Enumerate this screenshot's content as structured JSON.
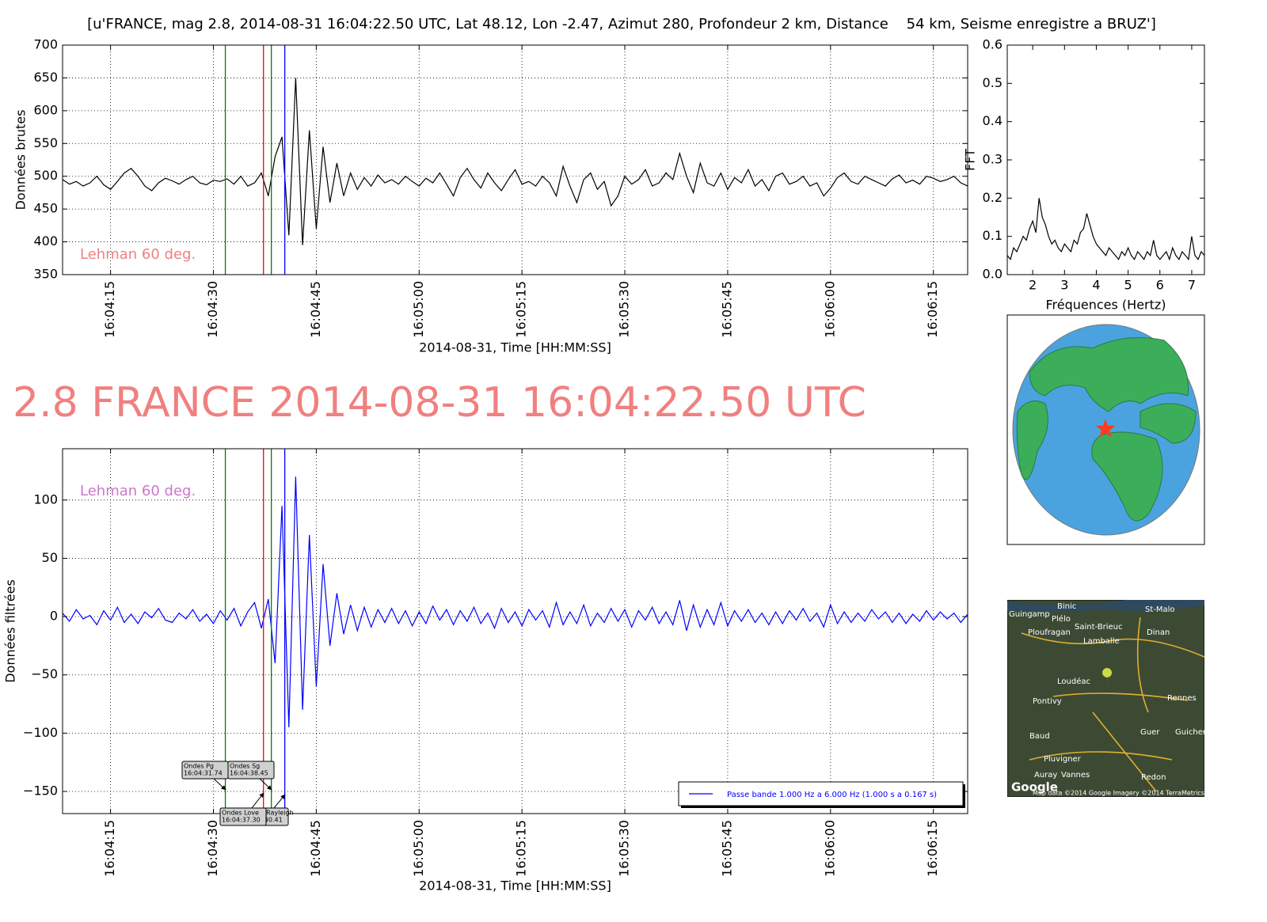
{
  "chart_data": [
    {
      "type": "line",
      "title": "[u'FRANCE, mag 2.8, 2014-08-31 16:04:22.50 UTC, Lat 48.12, Lon -2.47, Azimut 280, Profondeur 2 km, Distance    54 km, Seisme enregistre a BRUZ']",
      "ylabel": "Données brutes",
      "xlabel": "2014-08-31, Time [HH:MM:SS]",
      "annotation": "Lehman 60 deg.",
      "annotation_color": "#f08080",
      "x": [
        "16:04:08",
        "16:04:09",
        "16:04:10",
        "16:04:11",
        "16:04:12",
        "16:04:13",
        "16:04:14",
        "16:04:15",
        "16:04:16",
        "16:04:17",
        "16:04:18",
        "16:04:19",
        "16:04:20",
        "16:04:21",
        "16:04:22",
        "16:04:23",
        "16:04:24",
        "16:04:25",
        "16:04:26",
        "16:04:27",
        "16:04:28",
        "16:04:29",
        "16:04:30",
        "16:04:31",
        "16:04:32",
        "16:04:33",
        "16:04:34",
        "16:04:35",
        "16:04:36",
        "16:04:37",
        "16:04:38",
        "16:04:39",
        "16:04:40",
        "16:04:41",
        "16:04:42",
        "16:04:43",
        "16:04:44",
        "16:04:45",
        "16:04:46",
        "16:04:47",
        "16:04:48",
        "16:04:49",
        "16:04:50",
        "16:04:51",
        "16:04:52",
        "16:04:53",
        "16:04:54",
        "16:04:55",
        "16:04:56",
        "16:04:57",
        "16:04:58",
        "16:04:59",
        "16:05:00",
        "16:05:01",
        "16:05:02",
        "16:05:03",
        "16:05:04",
        "16:05:05",
        "16:05:06",
        "16:05:07",
        "16:05:08",
        "16:05:09",
        "16:05:10",
        "16:05:11",
        "16:05:12",
        "16:05:13",
        "16:05:14",
        "16:05:15",
        "16:05:16",
        "16:05:17",
        "16:05:18",
        "16:05:19",
        "16:05:20",
        "16:05:21",
        "16:05:22",
        "16:05:23",
        "16:05:24",
        "16:05:25",
        "16:05:26",
        "16:05:27",
        "16:05:28",
        "16:05:29",
        "16:05:30",
        "16:05:31",
        "16:05:32",
        "16:05:33",
        "16:05:34",
        "16:05:35",
        "16:05:36",
        "16:05:37",
        "16:05:38",
        "16:05:39",
        "16:05:40",
        "16:05:41",
        "16:05:42",
        "16:05:43",
        "16:05:44",
        "16:05:45",
        "16:05:46",
        "16:05:47",
        "16:05:48",
        "16:05:49",
        "16:05:50",
        "16:05:51",
        "16:05:52",
        "16:05:53",
        "16:05:54",
        "16:05:55",
        "16:05:56",
        "16:05:57",
        "16:05:58",
        "16:05:59",
        "16:06:00",
        "16:06:01",
        "16:06:02",
        "16:06:03",
        "16:06:04",
        "16:06:05",
        "16:06:06",
        "16:06:07",
        "16:06:08",
        "16:06:09",
        "16:06:10",
        "16:06:11",
        "16:06:12",
        "16:06:13",
        "16:06:14",
        "16:06:15",
        "16:06:16",
        "16:06:17",
        "16:06:18",
        "16:06:19",
        "16:06:20"
      ],
      "series": [
        {
          "color": "#000000",
          "values": [
            495,
            488,
            492,
            485,
            490,
            500,
            487,
            480,
            492,
            505,
            512,
            500,
            485,
            478,
            490,
            497,
            493,
            488,
            495,
            500,
            490,
            487,
            494,
            492,
            496,
            488,
            500,
            485,
            490,
            505,
            470,
            530,
            560,
            410,
            650,
            395,
            570,
            420,
            545,
            460,
            520,
            470,
            505,
            480,
            498,
            485,
            502,
            490,
            495,
            488,
            500,
            492,
            485,
            497,
            490,
            505,
            488,
            470,
            498,
            512,
            495,
            482,
            505,
            490,
            478,
            495,
            510,
            488,
            492,
            485,
            500,
            490,
            470,
            515,
            485,
            460,
            495,
            505,
            480,
            492,
            455,
            470,
            500,
            488,
            495,
            510,
            485,
            490,
            505,
            495,
            535,
            500,
            475,
            520,
            490,
            485,
            505,
            480,
            498,
            490,
            510,
            485,
            495,
            478,
            500,
            505,
            488,
            492,
            500,
            485,
            490,
            470,
            482,
            498,
            505,
            492,
            488,
            500,
            495,
            490,
            485,
            496,
            502,
            490,
            494,
            488,
            500,
            497,
            492,
            495,
            500,
            490,
            485
          ]
        }
      ],
      "xlim": [
        "16:04:08",
        "16:06:20"
      ],
      "xticks": [
        "16:04:15",
        "16:04:30",
        "16:04:45",
        "16:05:00",
        "16:05:15",
        "16:05:30",
        "16:05:45",
        "16:06:00",
        "16:06:15"
      ],
      "ylim": [
        350,
        700
      ],
      "yticks": [
        350,
        400,
        450,
        500,
        550,
        600,
        650,
        700
      ],
      "grid": true,
      "vlines": [
        {
          "x": "16:04:31.74",
          "color": "#008000"
        },
        {
          "x": "16:04:37.30",
          "color": "#ff0000"
        },
        {
          "x": "16:04:38.45",
          "color": "#008000"
        },
        {
          "x": "16:04:40.41",
          "color": "#0000ff"
        }
      ]
    },
    {
      "type": "line",
      "title": "2.8 FRANCE 2014-08-31 16:04:22.50 UTC",
      "ylabel": "Données filtrées",
      "xlabel": "2014-08-31, Time [HH:MM:SS]",
      "annotation": "Lehman 60 deg.",
      "annotation_color": "#cc77cc",
      "x": [
        "16:04:08",
        "16:04:09",
        "16:04:10",
        "16:04:11",
        "16:04:12",
        "16:04:13",
        "16:04:14",
        "16:04:15",
        "16:04:16",
        "16:04:17",
        "16:04:18",
        "16:04:19",
        "16:04:20",
        "16:04:21",
        "16:04:22",
        "16:04:23",
        "16:04:24",
        "16:04:25",
        "16:04:26",
        "16:04:27",
        "16:04:28",
        "16:04:29",
        "16:04:30",
        "16:04:31",
        "16:04:32",
        "16:04:33",
        "16:04:34",
        "16:04:35",
        "16:04:36",
        "16:04:37",
        "16:04:38",
        "16:04:39",
        "16:04:40",
        "16:04:41",
        "16:04:42",
        "16:04:43",
        "16:04:44",
        "16:04:45",
        "16:04:46",
        "16:04:47",
        "16:04:48",
        "16:04:49",
        "16:04:50",
        "16:04:51",
        "16:04:52",
        "16:04:53",
        "16:04:54",
        "16:04:55",
        "16:04:56",
        "16:04:57",
        "16:04:58",
        "16:04:59",
        "16:05:00",
        "16:05:01",
        "16:05:02",
        "16:05:03",
        "16:05:04",
        "16:05:05",
        "16:05:06",
        "16:05:07",
        "16:05:08",
        "16:05:09",
        "16:05:10",
        "16:05:11",
        "16:05:12",
        "16:05:13",
        "16:05:14",
        "16:05:15",
        "16:05:16",
        "16:05:17",
        "16:05:18",
        "16:05:19",
        "16:05:20",
        "16:05:21",
        "16:05:22",
        "16:05:23",
        "16:05:24",
        "16:05:25",
        "16:05:26",
        "16:05:27",
        "16:05:28",
        "16:05:29",
        "16:05:30",
        "16:05:31",
        "16:05:32",
        "16:05:33",
        "16:05:34",
        "16:05:35",
        "16:05:36",
        "16:05:37",
        "16:05:38",
        "16:05:39",
        "16:05:40",
        "16:05:41",
        "16:05:42",
        "16:05:43",
        "16:05:44",
        "16:05:45",
        "16:05:46",
        "16:05:47",
        "16:05:48",
        "16:05:49",
        "16:05:50",
        "16:05:51",
        "16:05:52",
        "16:05:53",
        "16:05:54",
        "16:05:55",
        "16:05:56",
        "16:05:57",
        "16:05:58",
        "16:05:59",
        "16:06:00",
        "16:06:01",
        "16:06:02",
        "16:06:03",
        "16:06:04",
        "16:06:05",
        "16:06:06",
        "16:06:07",
        "16:06:08",
        "16:06:09",
        "16:06:10",
        "16:06:11",
        "16:06:12",
        "16:06:13",
        "16:06:14",
        "16:06:15",
        "16:06:16",
        "16:06:17",
        "16:06:18",
        "16:06:19",
        "16:06:20"
      ],
      "series": [
        {
          "name": "Passe bande 1.000 Hz a 6.000 Hz (1.000 s a 0.167 s)",
          "color": "#0000ff",
          "values": [
            3,
            -4,
            6,
            -2,
            1,
            -7,
            5,
            -3,
            8,
            -5,
            2,
            -6,
            4,
            -1,
            7,
            -3,
            -5,
            3,
            -2,
            6,
            -4,
            2,
            -6,
            5,
            -3,
            7,
            -8,
            4,
            12,
            -10,
            15,
            -40,
            95,
            -95,
            120,
            -80,
            70,
            -60,
            45,
            -25,
            20,
            -15,
            10,
            -12,
            8,
            -9,
            6,
            -5,
            7,
            -6,
            5,
            -8,
            4,
            -6,
            9,
            -3,
            6,
            -7,
            5,
            -4,
            8,
            -6,
            3,
            -10,
            7,
            -5,
            4,
            -8,
            6,
            -3,
            5,
            -9,
            12,
            -7,
            4,
            -6,
            10,
            -8,
            3,
            -5,
            7,
            -4,
            6,
            -9,
            5,
            -3,
            8,
            -6,
            4,
            -7,
            14,
            -12,
            10,
            -9,
            6,
            -7,
            12,
            -8,
            5,
            -4,
            6,
            -5,
            3,
            -7,
            4,
            -6,
            5,
            -3,
            7,
            -4,
            3,
            -9,
            10,
            -6,
            4,
            -5,
            3,
            -4,
            6,
            -2,
            4,
            -5,
            3,
            -6,
            2,
            -4,
            5,
            -3,
            4,
            -2,
            3,
            -5,
            2
          ]
        }
      ],
      "legend": "lower right",
      "xlim": [
        "16:04:08",
        "16:06:20"
      ],
      "xticks": [
        "16:04:15",
        "16:04:30",
        "16:04:45",
        "16:05:00",
        "16:05:15",
        "16:05:30",
        "16:05:45",
        "16:06:00",
        "16:06:15"
      ],
      "ylim": [
        -169,
        144
      ],
      "yticks": [
        {
          "value": -150,
          "label": "−150"
        },
        {
          "value": -100,
          "label": "−100"
        },
        {
          "value": -50,
          "label": "−50"
        },
        0,
        50,
        100
      ],
      "grid": true,
      "vlines": [
        {
          "x": "16:04:31.74",
          "color": "#008000",
          "label": "Ondes Pg"
        },
        {
          "x": "16:04:38.45",
          "color": "#008000",
          "label": "Ondes Sg"
        },
        {
          "x": "16:04:40.41",
          "color": "#0000ff",
          "label": "Ondes Rayleigh"
        },
        {
          "x": "16:04:37.30",
          "color": "#ff0000",
          "label": "Ondes Love"
        }
      ]
    },
    {
      "type": "line",
      "ylabel": "FFT",
      "xlabel": "Fréquences (Hertz)",
      "x": [
        1.2,
        1.3,
        1.4,
        1.5,
        1.6,
        1.7,
        1.8,
        1.9,
        2.0,
        2.1,
        2.2,
        2.3,
        2.4,
        2.5,
        2.6,
        2.7,
        2.8,
        2.9,
        3.0,
        3.1,
        3.2,
        3.3,
        3.4,
        3.5,
        3.6,
        3.7,
        3.8,
        3.9,
        4.0,
        4.1,
        4.2,
        4.3,
        4.4,
        4.5,
        4.6,
        4.7,
        4.8,
        4.9,
        5.0,
        5.1,
        5.2,
        5.3,
        5.4,
        5.5,
        5.6,
        5.7,
        5.8,
        5.9,
        6.0,
        6.1,
        6.2,
        6.3,
        6.4,
        6.5,
        6.6,
        6.7,
        6.8,
        6.9,
        7.0,
        7.1,
        7.2,
        7.3,
        7.4
      ],
      "series": [
        {
          "color": "#000000",
          "values": [
            0.05,
            0.04,
            0.07,
            0.06,
            0.08,
            0.1,
            0.09,
            0.12,
            0.14,
            0.11,
            0.2,
            0.15,
            0.13,
            0.1,
            0.08,
            0.09,
            0.07,
            0.06,
            0.08,
            0.07,
            0.06,
            0.09,
            0.08,
            0.11,
            0.12,
            0.16,
            0.13,
            0.1,
            0.08,
            0.07,
            0.06,
            0.05,
            0.07,
            0.06,
            0.05,
            0.04,
            0.06,
            0.05,
            0.07,
            0.05,
            0.04,
            0.06,
            0.05,
            0.04,
            0.06,
            0.05,
            0.09,
            0.05,
            0.04,
            0.05,
            0.06,
            0.04,
            0.07,
            0.05,
            0.04,
            0.06,
            0.05,
            0.04,
            0.1,
            0.05,
            0.04,
            0.06,
            0.05
          ]
        }
      ],
      "xlim": [
        1.2,
        7.4
      ],
      "xticks": [
        2,
        3,
        4,
        5,
        6,
        7
      ],
      "ylim": [
        0,
        0.6
      ],
      "yticks": [
        {
          "value": 0,
          "label": "0.0"
        },
        0.1,
        0.2,
        0.3,
        0.4,
        0.5,
        0.6
      ],
      "grid": false
    }
  ],
  "map": {
    "labels": [
      "Binic",
      "Guingamp",
      "Plélo",
      "St-Malo",
      "Saint-Brieuc",
      "Ploufragan",
      "Lamballe",
      "Dinan",
      "Loudéac",
      "Pontivy",
      "Rennes",
      "Baud",
      "Pluvigner",
      "Auray",
      "Vannes",
      "Redon",
      "Guer",
      "Guichen"
    ],
    "logo": "Google",
    "attribution": "Map data ©2014 Google  Imagery ©2014 TerraMetrics"
  }
}
